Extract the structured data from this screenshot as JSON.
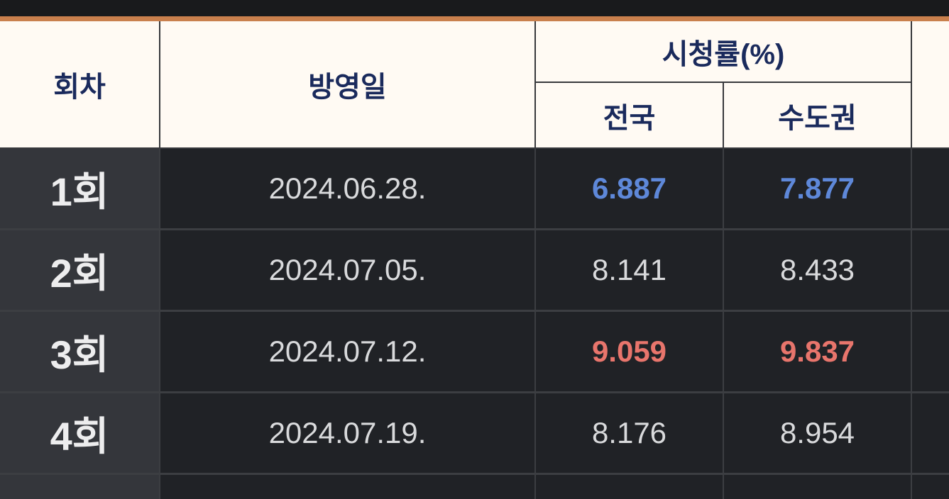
{
  "colors": {
    "accent_bar": "#c9804d",
    "top_bar_bg": "#191a1c",
    "header_bg": "#fffaf3",
    "header_text": "#1a2a5c",
    "body_bg": "#202226",
    "episode_col_bg": "#34363b",
    "border": "#3c3e42",
    "text": "#d9dadc",
    "episode_text": "#ededee",
    "lowest_rating_text": "#5e88d9",
    "highest_rating_text": "#e8756c"
  },
  "header": {
    "episode": "회차",
    "air_date": "방영일",
    "ratings_group": "시청률(%)",
    "nationwide": "전국",
    "metro": "수도권"
  },
  "rows": [
    {
      "episode": "1회",
      "date": "2024.06.28.",
      "nationwide": "6.887",
      "metro": "7.877",
      "emphasis": "lowest"
    },
    {
      "episode": "2회",
      "date": "2024.07.05.",
      "nationwide": "8.141",
      "metro": "8.433",
      "emphasis": "none"
    },
    {
      "episode": "3회",
      "date": "2024.07.12.",
      "nationwide": "9.059",
      "metro": "9.837",
      "emphasis": "highest"
    },
    {
      "episode": "4회",
      "date": "2024.07.19.",
      "nationwide": "8.176",
      "metro": "8.954",
      "emphasis": "none"
    }
  ]
}
